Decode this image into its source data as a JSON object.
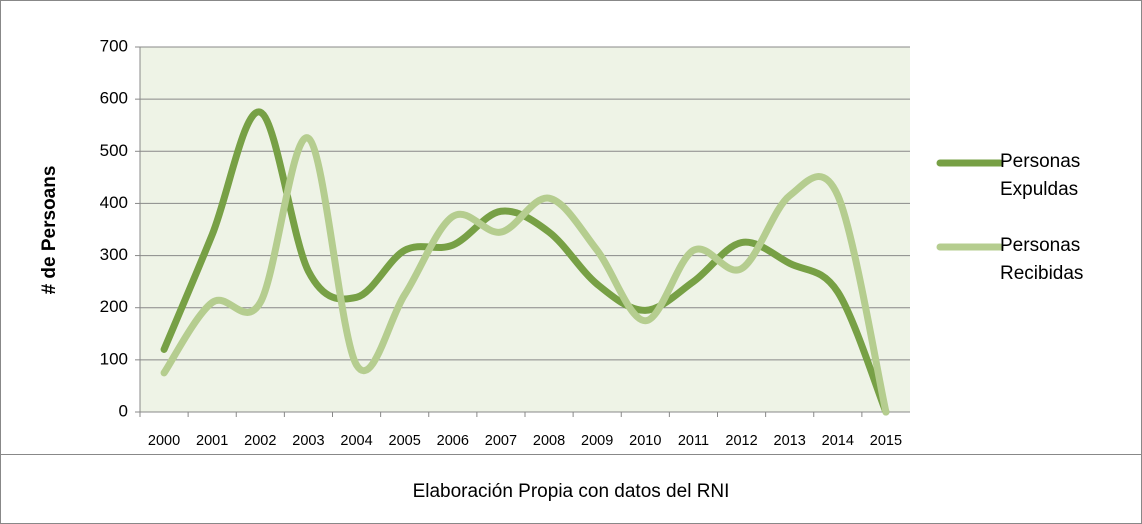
{
  "chart_data": {
    "type": "line",
    "ylabel": "# de Persoans",
    "source": "Elaboración Propia con datos del RNI",
    "categories": [
      "2000",
      "2001",
      "2002",
      "2003",
      "2004",
      "2005",
      "2006",
      "2007",
      "2008",
      "2009",
      "2010",
      "2011",
      "2012",
      "2013",
      "2014",
      "2015"
    ],
    "series": [
      {
        "name": "Personas Expuldas",
        "color": "#77a045",
        "values": [
          120,
          340,
          575,
          270,
          220,
          310,
          320,
          385,
          345,
          245,
          195,
          250,
          325,
          285,
          230,
          0
        ]
      },
      {
        "name": "Personas Recibidas",
        "color": "#b5cd8f",
        "values": [
          75,
          210,
          210,
          525,
          90,
          225,
          375,
          345,
          410,
          310,
          175,
          310,
          275,
          415,
          415,
          0
        ]
      }
    ],
    "ylim": [
      0,
      700
    ],
    "yticks": [
      0,
      100,
      200,
      300,
      400,
      500,
      600,
      700
    ],
    "grid": true,
    "legend": "right",
    "smooth": true
  }
}
